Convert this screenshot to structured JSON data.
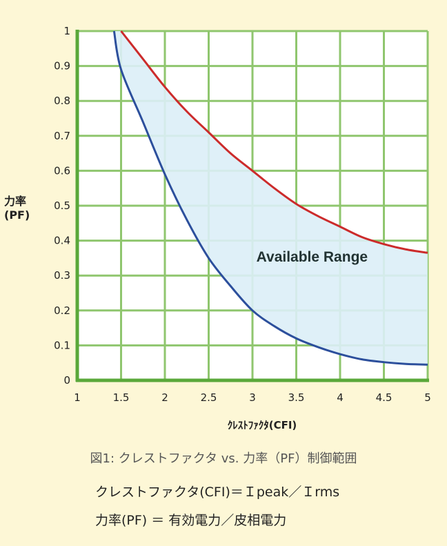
{
  "chart_data": {
    "type": "line",
    "ylabel_line1": "力率",
    "ylabel_line2": "(PF)",
    "xlabel": "ｸﾚｽﾄﾌｧｸﾀ(CFI)",
    "xlim": [
      1,
      5
    ],
    "ylim": [
      0,
      1
    ],
    "x_ticks": [
      "1",
      "1.5",
      "2",
      "2.5",
      "3",
      "3.5",
      "4",
      "4.5",
      "5"
    ],
    "y_ticks": [
      "0",
      "0.1",
      "0.2",
      "0.3",
      "0.4",
      "0.5",
      "0.6",
      "0.7",
      "0.8",
      "0.9",
      "1"
    ],
    "grid": true,
    "annotation": "Available Range",
    "colors": {
      "upper": "#cc2b2b",
      "lower": "#2c4f9c",
      "fill": "#dceef7",
      "grid": "#8fc66e",
      "axis": "#5aa83a",
      "plot_bg": "#ffffff",
      "page_bg": "#fdf7d6"
    },
    "series": [
      {
        "x": [
          1.5,
          1.75,
          2,
          2.25,
          2.5,
          2.75,
          3,
          3.25,
          3.5,
          3.75,
          4,
          4.25,
          4.5,
          4.75,
          5
        ],
        "values": [
          1.0,
          0.92,
          0.84,
          0.77,
          0.71,
          0.65,
          0.6,
          0.55,
          0.505,
          0.47,
          0.44,
          0.41,
          0.39,
          0.375,
          0.365
        ]
      },
      {
        "x": [
          1.42,
          1.5,
          1.75,
          2,
          2.25,
          2.5,
          2.75,
          3,
          3.25,
          3.5,
          3.75,
          4,
          4.25,
          4.5,
          4.75,
          5
        ],
        "values": [
          1.0,
          0.89,
          0.74,
          0.59,
          0.46,
          0.35,
          0.27,
          0.2,
          0.155,
          0.12,
          0.095,
          0.075,
          0.06,
          0.052,
          0.047,
          0.045
        ]
      }
    ]
  },
  "caption": "図1: クレストファクタ vs. 力率（PF）制御範囲",
  "formula1": "クレストファクタ(CFI)＝Ｉpeak／Ｉrms",
  "formula2": "力率(PF) ＝ 有効電力／皮相電力"
}
